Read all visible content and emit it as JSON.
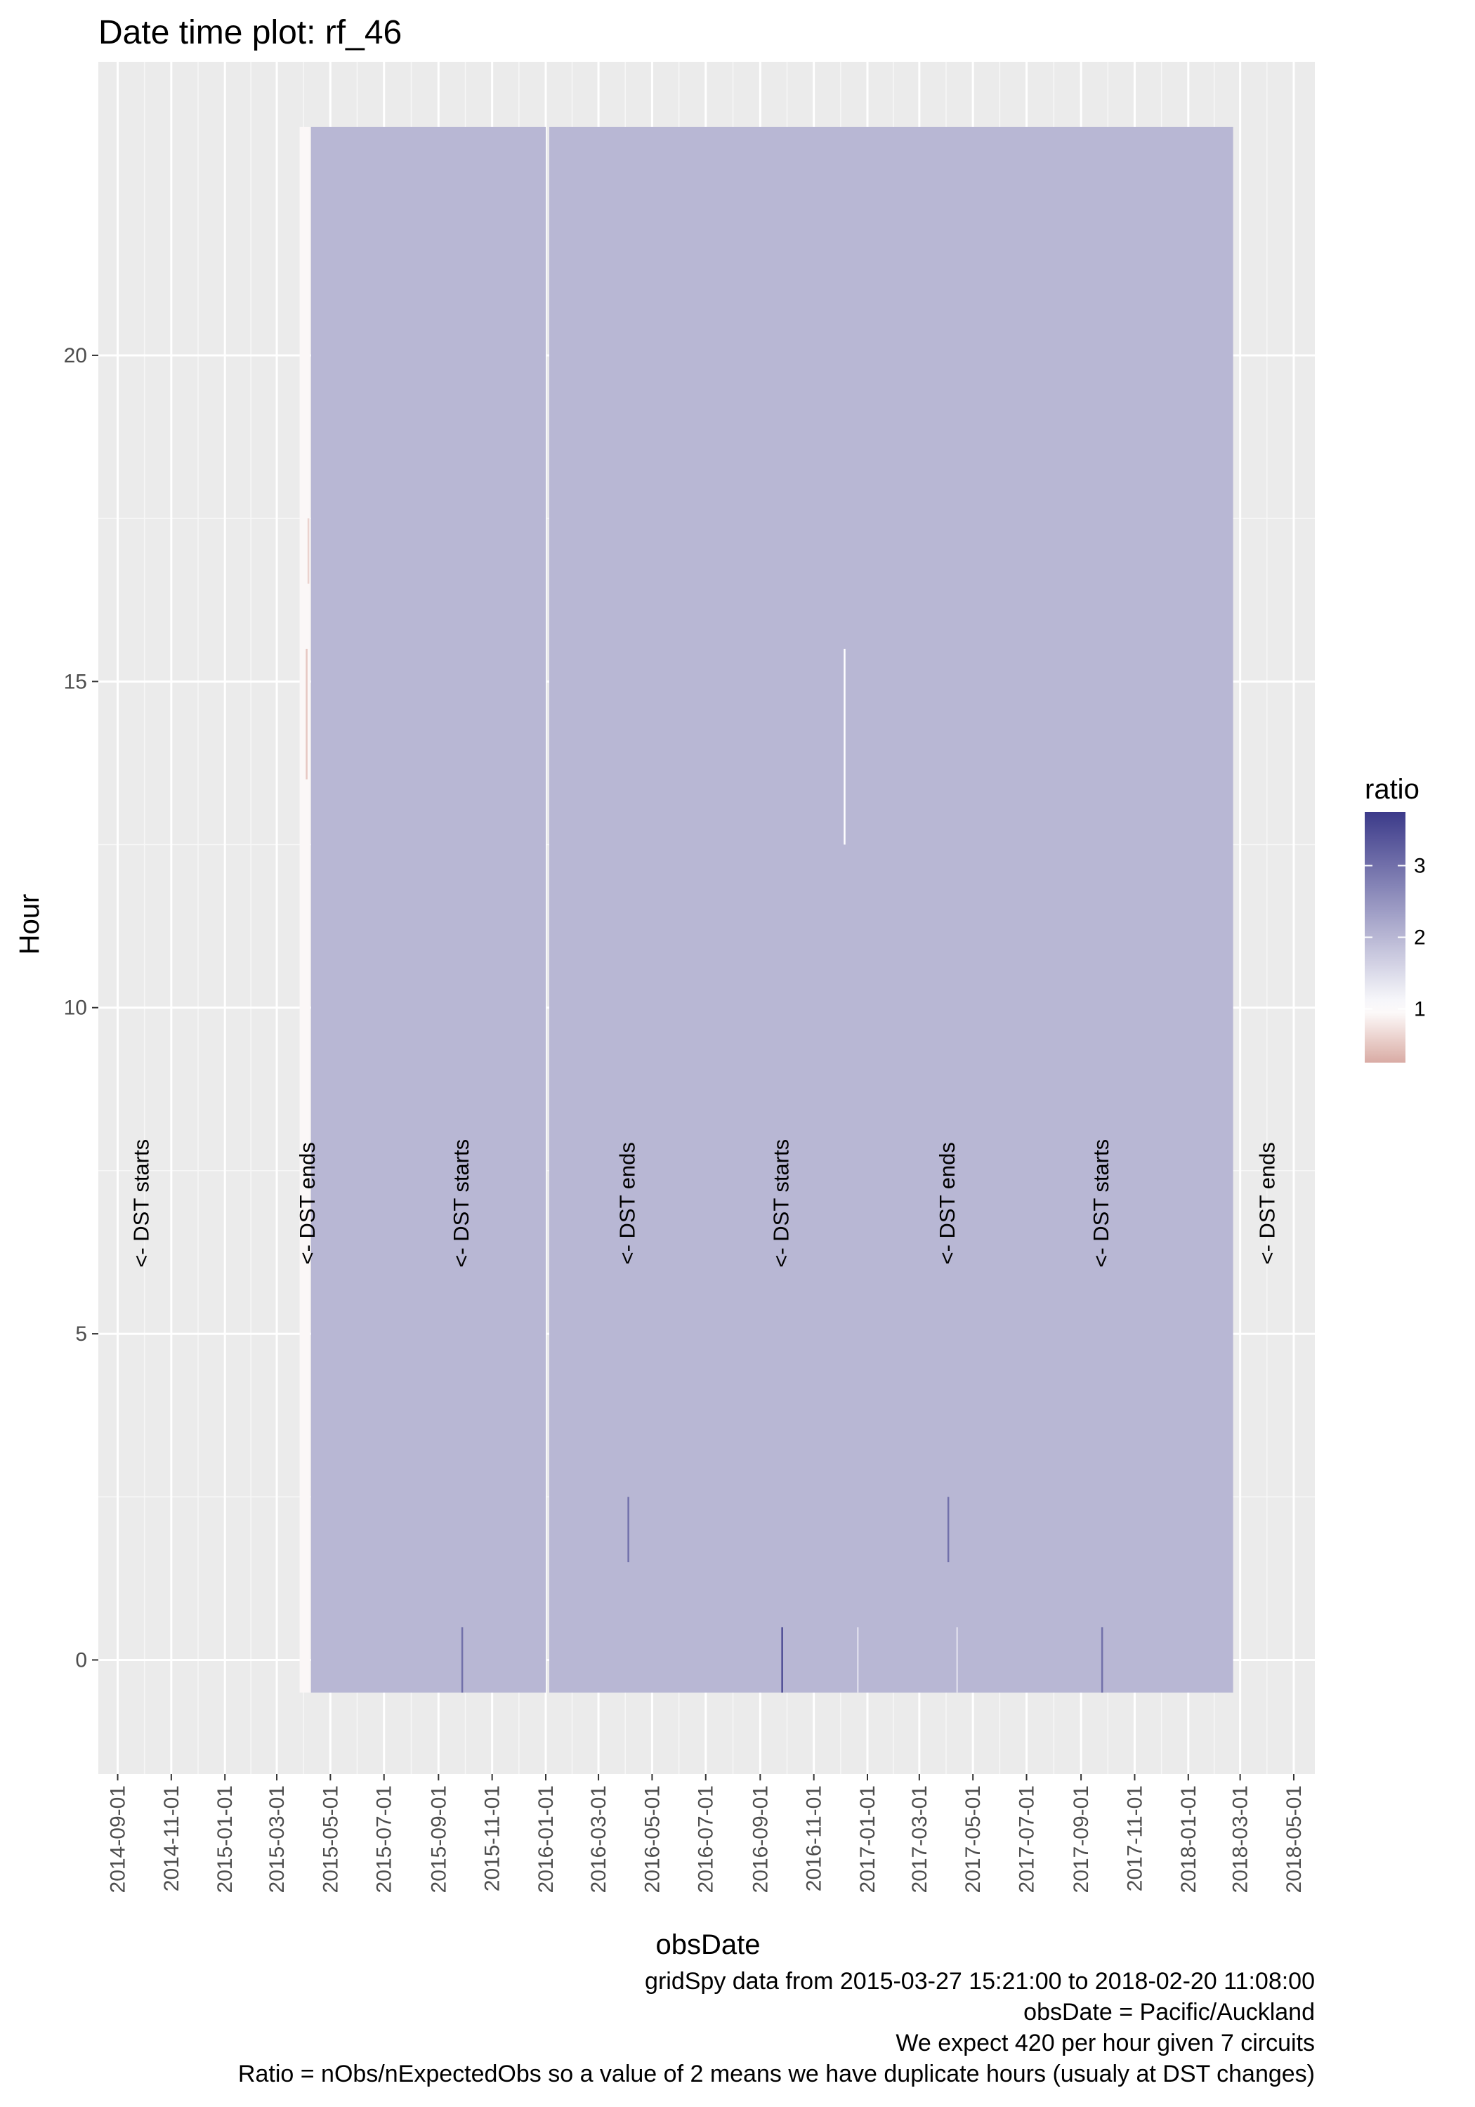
{
  "chart_data": {
    "type": "heatmap",
    "title": "Date time plot: rf_46",
    "xlabel": "obsDate",
    "ylabel": "Hour",
    "xlim": [
      "2014-08-10",
      "2018-05-25"
    ],
    "ylim": [
      -1.75,
      24.5
    ],
    "x_ticks": [
      "2014-09-01",
      "2014-11-01",
      "2015-01-01",
      "2015-03-01",
      "2015-05-01",
      "2015-07-01",
      "2015-09-01",
      "2015-11-01",
      "2016-01-01",
      "2016-03-01",
      "2016-05-01",
      "2016-07-01",
      "2016-09-01",
      "2016-11-01",
      "2017-01-01",
      "2017-03-01",
      "2017-05-01",
      "2017-07-01",
      "2017-09-01",
      "2017-11-01",
      "2018-01-01",
      "2018-03-01",
      "2018-05-01"
    ],
    "y_ticks": [
      0,
      5,
      10,
      15,
      20
    ],
    "grid": true,
    "legend": {
      "title": "ratio",
      "position": "right",
      "breaks": [
        1,
        2,
        3
      ],
      "range": [
        0.25,
        3.75
      ],
      "low_color": "#d9aba4",
      "mid_color": "#ffffff",
      "high_color": "#3c3a8a",
      "midpoint": 1
    },
    "tiles": [
      {
        "start": "2015-03-27",
        "end": "2015-04-07",
        "hour_from": 0,
        "hour_to": 23,
        "ratio": 0.93
      },
      {
        "start": "2015-04-09",
        "end": "2015-12-31",
        "hour_from": 0,
        "hour_to": 23,
        "ratio": 2.0
      },
      {
        "start": "2016-01-05",
        "end": "2018-02-20",
        "hour_from": 0,
        "hour_to": 23,
        "ratio": 2.0
      }
    ],
    "outliers": [
      {
        "date": "2015-04-03",
        "hour_from": 14,
        "hour_to": 15,
        "ratio": 0.5
      },
      {
        "date": "2015-04-05",
        "hour_from": 17,
        "hour_to": 17,
        "ratio": 0.6
      },
      {
        "date": "2015-09-27",
        "hour_from": 0,
        "hour_to": 0,
        "ratio": 3.0
      },
      {
        "date": "2016-04-03",
        "hour_from": 2,
        "hour_to": 2,
        "ratio": 3.0
      },
      {
        "date": "2016-09-25",
        "hour_from": 0,
        "hour_to": 0,
        "ratio": 3.5
      },
      {
        "date": "2016-12-20",
        "hour_from": 0,
        "hour_to": 0,
        "ratio": 1.5
      },
      {
        "date": "2016-12-05",
        "hour_from": 13,
        "hour_to": 15,
        "ratio": 1.0
      },
      {
        "date": "2017-04-02",
        "hour_from": 2,
        "hour_to": 2,
        "ratio": 3.0
      },
      {
        "date": "2017-04-12",
        "hour_from": 0,
        "hour_to": 0,
        "ratio": 1.5
      },
      {
        "date": "2017-09-24",
        "hour_from": 0,
        "hour_to": 0,
        "ratio": 3.0
      }
    ],
    "annotations": [
      {
        "date": "2014-09-28",
        "label": "<- DST starts"
      },
      {
        "date": "2015-04-05",
        "label": "<- DST ends"
      },
      {
        "date": "2015-09-27",
        "label": "<- DST starts"
      },
      {
        "date": "2016-04-03",
        "label": "<- DST ends"
      },
      {
        "date": "2016-09-25",
        "label": "<- DST starts"
      },
      {
        "date": "2017-04-02",
        "label": "<- DST ends"
      },
      {
        "date": "2017-09-24",
        "label": "<- DST starts"
      },
      {
        "date": "2018-04-01",
        "label": "<- DST ends"
      }
    ],
    "caption": [
      "gridSpy data from 2015-03-27 15:21:00 to 2018-02-20 11:08:00",
      "obsDate = Pacific/Auckland",
      "We expect 420 per hour given 7 circuits",
      "Ratio = nObs/nExpectedObs so a value of 2 means we have duplicate hours (usualy at DST changes)"
    ]
  },
  "colors": {
    "panel_background": "#ebebeb",
    "grid_major": "#ffffff",
    "grid_minor": "#f7f7f7",
    "tick_text": "#4d4d4d"
  }
}
